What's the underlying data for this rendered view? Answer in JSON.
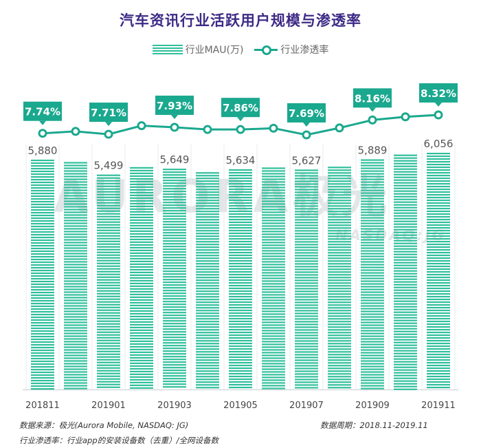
{
  "title": "汽车资讯行业活跃用户规模与渗透率",
  "legend": {
    "bar_label": "行业MAU(万)",
    "line_label": "行业渗透率"
  },
  "watermark": {
    "main": "AURORA极光",
    "sub": "NASDAQ:JG"
  },
  "footer": {
    "source": "数据来源：极光(Aurora Mobile, NASDAQ: JG)",
    "period": "数据周期：2018.11-2019.11",
    "note": "行业渗透率：行业app的安装设备数（去重）/全网设备数"
  },
  "colors": {
    "title": "#3d2a86",
    "bar": "#2fbf9b",
    "line": "#1aa88e",
    "label_box": "#1aa88e"
  },
  "chart_data": {
    "type": "bar+line",
    "title": "汽车资讯行业活跃用户规模与渗透率",
    "categories": [
      "201811",
      "201812",
      "201901",
      "201902",
      "201903",
      "201904",
      "201905",
      "201906",
      "201907",
      "201908",
      "201909",
      "201910",
      "201911"
    ],
    "x_tick_labels": [
      "201811",
      "201901",
      "201903",
      "201905",
      "201907",
      "201909",
      "201911"
    ],
    "series": [
      {
        "name": "行业MAU(万)",
        "type": "bar",
        "values": [
          5880,
          5820,
          5499,
          5690,
          5649,
          5560,
          5634,
          5680,
          5627,
          5700,
          5889,
          6010,
          6056
        ],
        "labels": [
          "5,880",
          null,
          "5,499",
          null,
          "5,649",
          null,
          "5,634",
          null,
          "5,627",
          null,
          "5,889",
          null,
          "6,056"
        ]
      },
      {
        "name": "行业渗透率",
        "type": "line",
        "values": [
          7.74,
          7.8,
          7.71,
          7.98,
          7.93,
          7.86,
          7.86,
          7.9,
          7.69,
          7.91,
          8.16,
          8.26,
          8.32
        ],
        "labels": [
          "7.74%",
          null,
          "7.71%",
          null,
          "7.93%",
          null,
          "7.86%",
          null,
          "7.69%",
          null,
          "8.16%",
          null,
          "8.32%"
        ]
      }
    ],
    "grid": true,
    "legend_position": "top"
  }
}
